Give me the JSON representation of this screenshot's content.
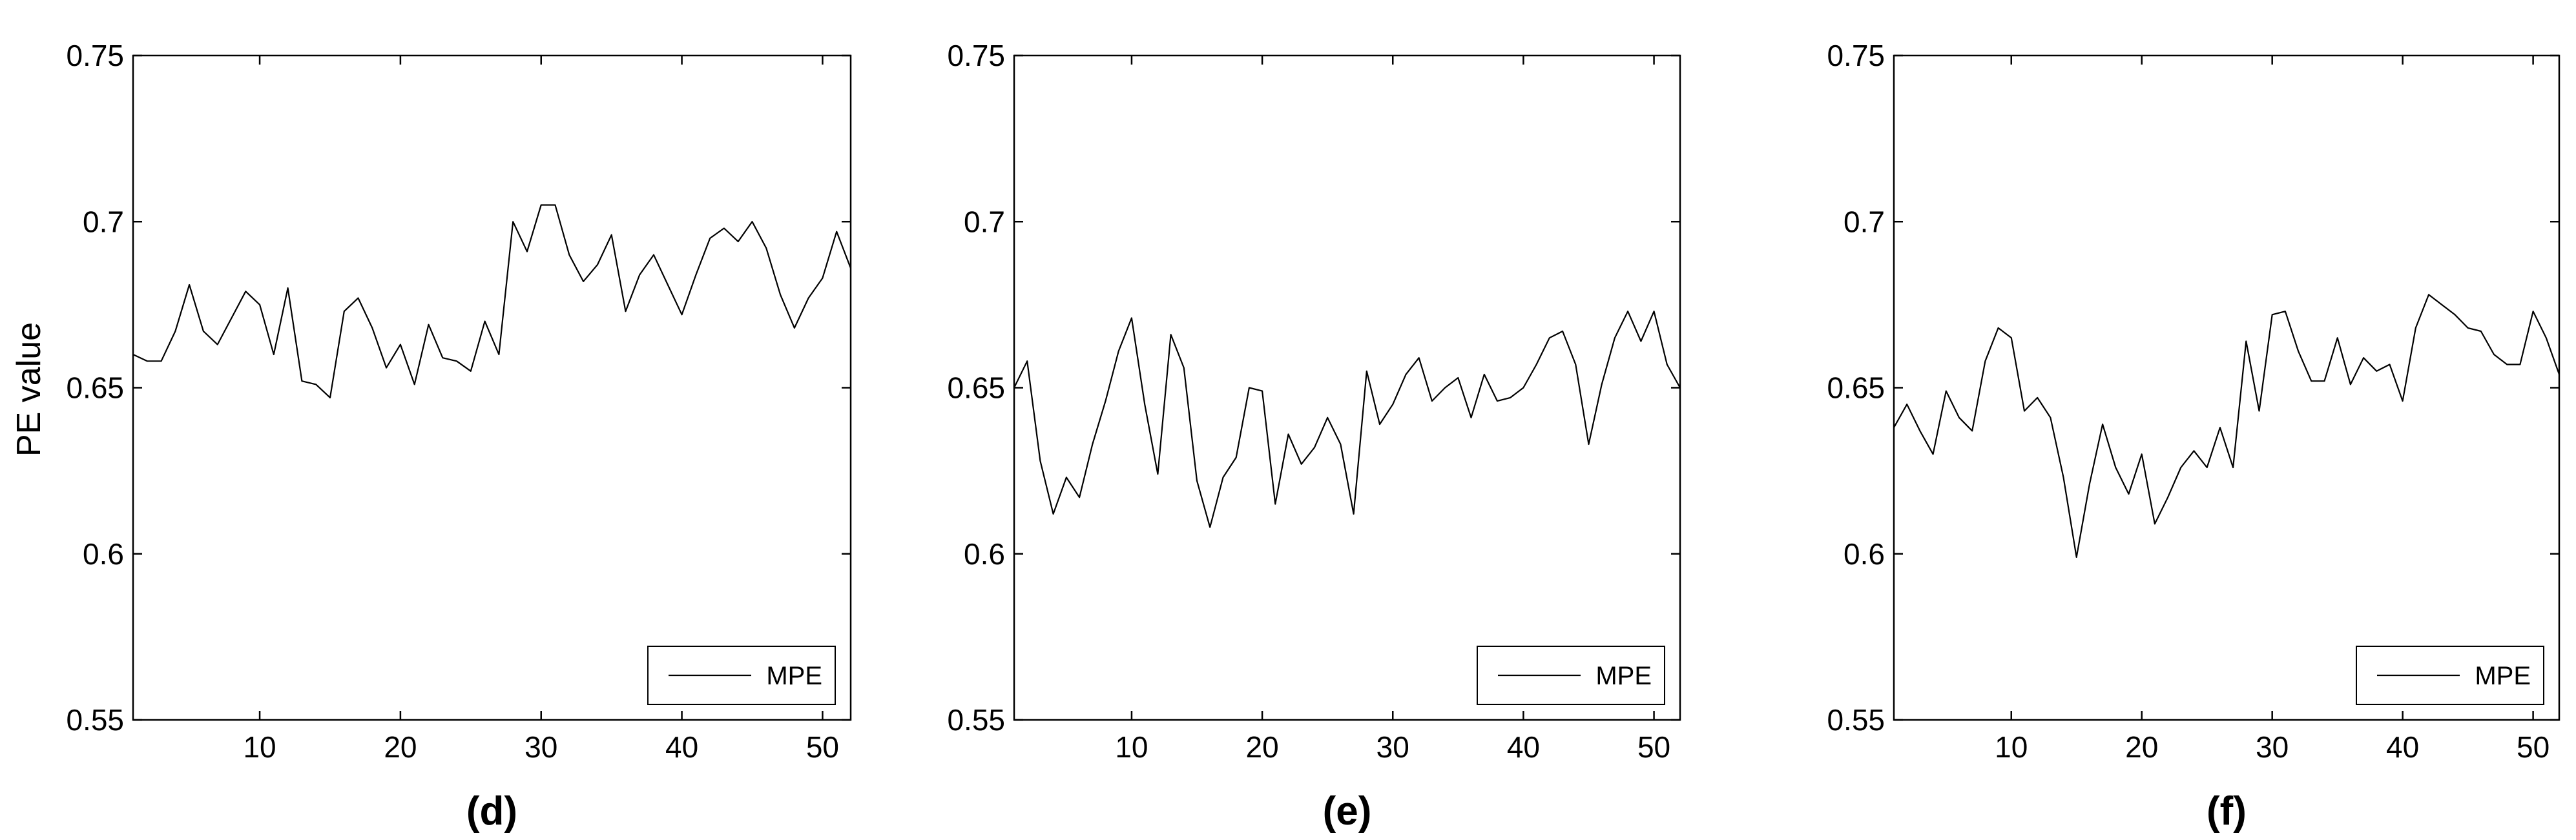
{
  "figure": {
    "ylabel": "PE value"
  },
  "chart_data": [
    {
      "type": "line",
      "panel_label": "(d)",
      "xlim": [
        1,
        52
      ],
      "ylim": [
        0.55,
        0.75
      ],
      "xticks": [
        10,
        20,
        30,
        40,
        50
      ],
      "yticks": [
        0.55,
        0.6,
        0.65,
        0.7,
        0.75
      ],
      "ytick_labels": [
        "0.55",
        "0.6",
        "0.65",
        "0.7",
        "0.75"
      ],
      "legend_position": "bottom-right",
      "grid": false,
      "series": [
        {
          "name": "MPE",
          "x": [
            1,
            2,
            3,
            4,
            5,
            6,
            7,
            8,
            9,
            10,
            11,
            12,
            13,
            14,
            15,
            16,
            17,
            18,
            19,
            20,
            21,
            22,
            23,
            24,
            25,
            26,
            27,
            28,
            29,
            30,
            31,
            32,
            33,
            34,
            35,
            36,
            37,
            38,
            39,
            40,
            41,
            42,
            43,
            44,
            45,
            46,
            47,
            48,
            49,
            50,
            51,
            52
          ],
          "y": [
            0.66,
            0.658,
            0.658,
            0.667,
            0.681,
            0.667,
            0.663,
            0.671,
            0.679,
            0.675,
            0.66,
            0.68,
            0.652,
            0.651,
            0.647,
            0.673,
            0.677,
            0.668,
            0.656,
            0.663,
            0.651,
            0.669,
            0.659,
            0.658,
            0.655,
            0.67,
            0.66,
            0.7,
            0.691,
            0.705,
            0.705,
            0.69,
            0.682,
            0.687,
            0.696,
            0.673,
            0.684,
            0.69,
            0.681,
            0.672,
            0.684,
            0.695,
            0.698,
            0.694,
            0.7,
            0.692,
            0.678,
            0.668,
            0.677,
            0.683,
            0.697,
            0.686
          ]
        }
      ]
    },
    {
      "type": "line",
      "panel_label": "(e)",
      "xlim": [
        1,
        52
      ],
      "ylim": [
        0.55,
        0.75
      ],
      "xticks": [
        10,
        20,
        30,
        40,
        50
      ],
      "yticks": [
        0.55,
        0.6,
        0.65,
        0.7,
        0.75
      ],
      "ytick_labels": [
        "0.55",
        "0.6",
        "0.65",
        "0.7",
        "0.75"
      ],
      "legend_position": "bottom-right",
      "grid": false,
      "series": [
        {
          "name": "MPE",
          "x": [
            1,
            2,
            3,
            4,
            5,
            6,
            7,
            8,
            9,
            10,
            11,
            12,
            13,
            14,
            15,
            16,
            17,
            18,
            19,
            20,
            21,
            22,
            23,
            24,
            25,
            26,
            27,
            28,
            29,
            30,
            31,
            32,
            33,
            34,
            35,
            36,
            37,
            38,
            39,
            40,
            41,
            42,
            43,
            44,
            45,
            46,
            47,
            48,
            49,
            50,
            51,
            52
          ],
          "y": [
            0.65,
            0.658,
            0.628,
            0.612,
            0.623,
            0.617,
            0.633,
            0.646,
            0.661,
            0.671,
            0.645,
            0.624,
            0.666,
            0.656,
            0.622,
            0.608,
            0.623,
            0.629,
            0.65,
            0.649,
            0.615,
            0.636,
            0.627,
            0.632,
            0.641,
            0.633,
            0.612,
            0.655,
            0.639,
            0.645,
            0.654,
            0.659,
            0.646,
            0.65,
            0.653,
            0.641,
            0.654,
            0.646,
            0.647,
            0.65,
            0.657,
            0.665,
            0.667,
            0.657,
            0.633,
            0.651,
            0.665,
            0.673,
            0.664,
            0.673,
            0.657,
            0.65
          ]
        }
      ]
    },
    {
      "type": "line",
      "panel_label": "(f)",
      "xlim": [
        1,
        52
      ],
      "ylim": [
        0.55,
        0.75
      ],
      "xticks": [
        10,
        20,
        30,
        40,
        50
      ],
      "yticks": [
        0.55,
        0.6,
        0.65,
        0.7,
        0.75
      ],
      "ytick_labels": [
        "0.55",
        "0.6",
        "0.65",
        "0.7",
        "0.75"
      ],
      "legend_position": "bottom-right",
      "grid": false,
      "series": [
        {
          "name": "MPE",
          "x": [
            1,
            2,
            3,
            4,
            5,
            6,
            7,
            8,
            9,
            10,
            11,
            12,
            13,
            14,
            15,
            16,
            17,
            18,
            19,
            20,
            21,
            22,
            23,
            24,
            25,
            26,
            27,
            28,
            29,
            30,
            31,
            32,
            33,
            34,
            35,
            36,
            37,
            38,
            39,
            40,
            41,
            42,
            43,
            44,
            45,
            46,
            47,
            48,
            49,
            50,
            51,
            52
          ],
          "y": [
            0.638,
            0.645,
            0.637,
            0.63,
            0.649,
            0.641,
            0.637,
            0.658,
            0.668,
            0.665,
            0.643,
            0.647,
            0.641,
            0.623,
            0.599,
            0.621,
            0.639,
            0.626,
            0.618,
            0.63,
            0.609,
            0.617,
            0.626,
            0.631,
            0.626,
            0.638,
            0.626,
            0.664,
            0.643,
            0.672,
            0.673,
            0.661,
            0.652,
            0.652,
            0.665,
            0.651,
            0.659,
            0.655,
            0.657,
            0.646,
            0.668,
            0.678,
            0.675,
            0.672,
            0.668,
            0.667,
            0.66,
            0.657,
            0.657,
            0.673,
            0.665,
            0.654
          ]
        }
      ]
    }
  ]
}
